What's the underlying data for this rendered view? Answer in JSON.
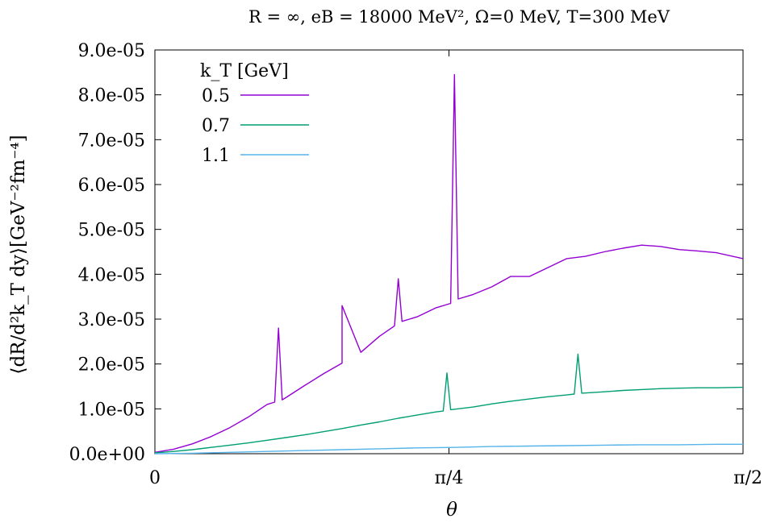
{
  "chart_data": {
    "type": "line",
    "title": "R = ∞, eB = 18000 MeV², Ω=0 MeV, T=300 MeV",
    "xlabel": "θ",
    "ylabel": "⟨dR/d²k_T dy⟩[GeV⁻²fm⁻⁴]",
    "xlim": [
      0,
      1.5708
    ],
    "ylim": [
      0,
      9e-05
    ],
    "x_ticks": [
      {
        "value": 0,
        "label": "0"
      },
      {
        "value": 0.7854,
        "label": "π/4"
      },
      {
        "value": 1.5708,
        "label": "π/2"
      }
    ],
    "y_ticks": [
      {
        "value": 0,
        "label": "0.0e+00"
      },
      {
        "value": 1e-05,
        "label": "1.0e-05"
      },
      {
        "value": 2e-05,
        "label": "2.0e-05"
      },
      {
        "value": 3e-05,
        "label": "3.0e-05"
      },
      {
        "value": 4e-05,
        "label": "4.0e-05"
      },
      {
        "value": 5e-05,
        "label": "5.0e-05"
      },
      {
        "value": 6e-05,
        "label": "6.0e-05"
      },
      {
        "value": 7e-05,
        "label": "7.0e-05"
      },
      {
        "value": 8e-05,
        "label": "8.0e-05"
      },
      {
        "value": 9e-05,
        "label": "9.0e-05"
      }
    ],
    "legend_title": "k_T [GeV]",
    "legend_position": "top-left",
    "grid": false,
    "series": [
      {
        "name": "0.5",
        "color": "#9400d3",
        "x": [
          0,
          0.05,
          0.1,
          0.15,
          0.2,
          0.25,
          0.3,
          0.32,
          0.33,
          0.34,
          0.35,
          0.4,
          0.45,
          0.5,
          0.5,
          0.55,
          0.6,
          0.64,
          0.65,
          0.66,
          0.7,
          0.75,
          0.79,
          0.8,
          0.81,
          0.85,
          0.9,
          0.95,
          1.0,
          1.05,
          1.1,
          1.15,
          1.2,
          1.25,
          1.3,
          1.35,
          1.4,
          1.45,
          1.5,
          1.5708
        ],
        "y": [
          3e-07,
          1e-06,
          2.2e-06,
          3.8e-06,
          5.8e-06,
          8.2e-06,
          1.1e-05,
          1.15e-05,
          2.8e-05,
          1.2e-05,
          1.25e-05,
          1.52e-05,
          1.78e-05,
          2.02e-05,
          3.3e-05,
          2.26e-05,
          2.62e-05,
          2.85e-05,
          3.9e-05,
          2.95e-05,
          3.05e-05,
          3.25e-05,
          3.35e-05,
          8.45e-05,
          3.45e-05,
          3.55e-05,
          3.72e-05,
          3.95e-05,
          3.95e-05,
          4.15e-05,
          4.35e-05,
          4.4e-05,
          4.5e-05,
          4.58e-05,
          4.65e-05,
          4.62e-05,
          4.55e-05,
          4.52e-05,
          4.48e-05,
          4.35e-05
        ]
      },
      {
        "name": "0.7",
        "color": "#009e73",
        "x": [
          0,
          0.05,
          0.1,
          0.15,
          0.2,
          0.25,
          0.3,
          0.35,
          0.4,
          0.45,
          0.5,
          0.55,
          0.6,
          0.65,
          0.7,
          0.75,
          0.77,
          0.78,
          0.79,
          0.85,
          0.9,
          0.95,
          1.0,
          1.05,
          1.1,
          1.12,
          1.13,
          1.14,
          1.2,
          1.25,
          1.3,
          1.35,
          1.4,
          1.45,
          1.5,
          1.5708
        ],
        "y": [
          2e-07,
          5e-07,
          9e-07,
          1.4e-06,
          1.9e-06,
          2.4e-06,
          3e-06,
          3.6e-06,
          4.2e-06,
          4.9e-06,
          5.6e-06,
          6.4e-06,
          7.1e-06,
          7.9e-06,
          8.6e-06,
          9.3e-06,
          9.5e-06,
          1.8e-05,
          9.8e-06,
          1.04e-05,
          1.11e-05,
          1.17e-05,
          1.22e-05,
          1.27e-05,
          1.31e-05,
          1.33e-05,
          2.22e-05,
          1.35e-05,
          1.38e-05,
          1.41e-05,
          1.43e-05,
          1.45e-05,
          1.46e-05,
          1.47e-05,
          1.47e-05,
          1.48e-05
        ]
      },
      {
        "name": "1.1",
        "color": "#56b4e9",
        "x": [
          0,
          0.1,
          0.2,
          0.3,
          0.4,
          0.5,
          0.6,
          0.7,
          0.8,
          0.9,
          1.0,
          1.1,
          1.2,
          1.3,
          1.4,
          1.5,
          1.5708
        ],
        "y": [
          0,
          1e-07,
          3e-07,
          5e-07,
          7e-07,
          9e-07,
          1.1e-06,
          1.3e-06,
          1.4e-06,
          1.6e-06,
          1.7e-06,
          1.8e-06,
          1.9e-06,
          2e-06,
          2e-06,
          2.1e-06,
          2.1e-06
        ]
      }
    ]
  }
}
